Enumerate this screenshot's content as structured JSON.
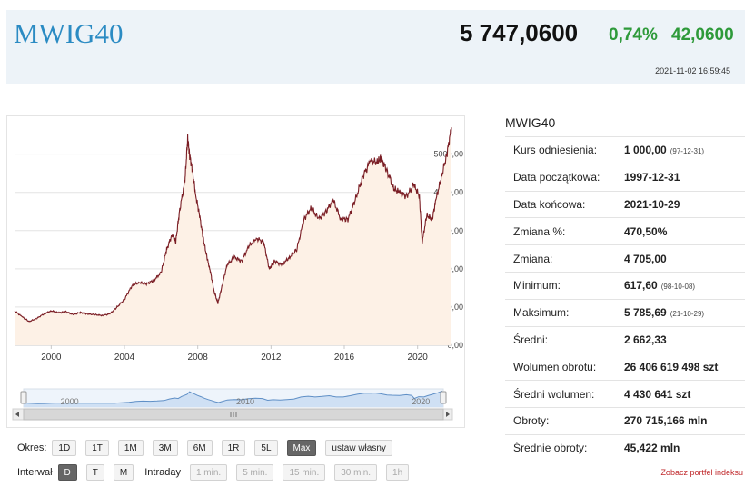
{
  "header": {
    "title": "MWIG40",
    "price": "5 747,0600",
    "change_pct": "0,74%",
    "change_abs": "42,0600",
    "timestamp": "2021-11-02 16:59:45",
    "accent_color": "#2b8bc3",
    "positive_color": "#2e9a3a"
  },
  "chart_data": {
    "type": "area",
    "x_ticks": [
      "2000",
      "2004",
      "2008",
      "2012",
      "2016",
      "2020"
    ],
    "y_ticks": [
      "0,00",
      "1000,00",
      "2000,00",
      "3000,00",
      "4000,00",
      "5000,00"
    ],
    "xlim": [
      1998.0,
      2021.9
    ],
    "ylim": [
      0,
      5800
    ],
    "grid": true,
    "line_color": "#7a1d24",
    "fill_color": "#fdf1e6",
    "navigator_ticks": [
      "2000",
      "2010",
      "2020"
    ],
    "points": [
      [
        1998.0,
        900
      ],
      [
        1998.4,
        750
      ],
      [
        1998.8,
        620
      ],
      [
        1999.2,
        700
      ],
      [
        1999.6,
        820
      ],
      [
        2000.0,
        900
      ],
      [
        2000.4,
        850
      ],
      [
        2000.8,
        880
      ],
      [
        2001.2,
        800
      ],
      [
        2001.6,
        860
      ],
      [
        2002.0,
        820
      ],
      [
        2002.4,
        800
      ],
      [
        2002.8,
        780
      ],
      [
        2003.2,
        820
      ],
      [
        2003.6,
        1000
      ],
      [
        2004.0,
        1200
      ],
      [
        2004.4,
        1550
      ],
      [
        2004.8,
        1650
      ],
      [
        2005.2,
        1600
      ],
      [
        2005.6,
        1700
      ],
      [
        2006.0,
        1900
      ],
      [
        2006.3,
        2500
      ],
      [
        2006.6,
        2900
      ],
      [
        2006.8,
        2700
      ],
      [
        2007.0,
        3500
      ],
      [
        2007.3,
        4300
      ],
      [
        2007.45,
        5400
      ],
      [
        2007.55,
        5000
      ],
      [
        2007.7,
        4600
      ],
      [
        2007.9,
        3900
      ],
      [
        2008.1,
        3400
      ],
      [
        2008.3,
        2800
      ],
      [
        2008.5,
        2300
      ],
      [
        2008.7,
        1900
      ],
      [
        2008.9,
        1400
      ],
      [
        2009.1,
        1100
      ],
      [
        2009.3,
        1500
      ],
      [
        2009.6,
        2100
      ],
      [
        2010.0,
        2300
      ],
      [
        2010.4,
        2200
      ],
      [
        2010.8,
        2600
      ],
      [
        2011.2,
        2800
      ],
      [
        2011.6,
        2700
      ],
      [
        2011.9,
        2000
      ],
      [
        2012.2,
        2200
      ],
      [
        2012.6,
        2100
      ],
      [
        2013.0,
        2300
      ],
      [
        2013.4,
        2500
      ],
      [
        2013.8,
        3300
      ],
      [
        2014.2,
        3600
      ],
      [
        2014.6,
        3300
      ],
      [
        2015.0,
        3500
      ],
      [
        2015.4,
        3800
      ],
      [
        2015.8,
        3300
      ],
      [
        2016.2,
        3300
      ],
      [
        2016.6,
        3800
      ],
      [
        2017.0,
        4400
      ],
      [
        2017.4,
        4800
      ],
      [
        2017.8,
        4800
      ],
      [
        2018.0,
        4900
      ],
      [
        2018.3,
        4600
      ],
      [
        2018.7,
        4100
      ],
      [
        2019.0,
        4000
      ],
      [
        2019.4,
        3900
      ],
      [
        2019.8,
        4200
      ],
      [
        2020.1,
        3900
      ],
      [
        2020.25,
        2700
      ],
      [
        2020.5,
        3400
      ],
      [
        2020.8,
        3300
      ],
      [
        2021.0,
        3800
      ],
      [
        2021.3,
        4400
      ],
      [
        2021.6,
        5000
      ],
      [
        2021.85,
        5700
      ]
    ]
  },
  "controls": {
    "period_label": "Okres:",
    "period_buttons": [
      "1D",
      "1T",
      "1M",
      "3M",
      "6M",
      "1R",
      "5L",
      "Max",
      "ustaw własny"
    ],
    "interval_label": "Interwał",
    "interval_buttons": [
      "D",
      "T",
      "M"
    ],
    "intraday_label": "Intraday",
    "intraday_buttons": [
      "1 min.",
      "5 min.",
      "15 min.",
      "30 min.",
      "1h"
    ]
  },
  "sidebar": {
    "title": "MWIG40",
    "rows": [
      {
        "label": "Kurs odniesienia:",
        "value": "1 000,00",
        "note": "(97-12-31)"
      },
      {
        "label": "Data początkowa:",
        "value": "1997-12-31",
        "note": ""
      },
      {
        "label": "Data końcowa:",
        "value": "2021-10-29",
        "note": ""
      },
      {
        "label": "Zmiana %:",
        "value": "470,50%",
        "note": ""
      },
      {
        "label": "Zmiana:",
        "value": "4 705,00",
        "note": ""
      },
      {
        "label": "Minimum:",
        "value": "617,60",
        "note": "(98-10-08)"
      },
      {
        "label": "Maksimum:",
        "value": "5 785,69",
        "note": "(21-10-29)"
      },
      {
        "label": "Średni:",
        "value": "2 662,33",
        "note": ""
      },
      {
        "label": "Wolumen obrotu:",
        "value": "26 406 619 498 szt",
        "note": ""
      },
      {
        "label": "Średni wolumen:",
        "value": "4 430 641 szt",
        "note": ""
      },
      {
        "label": "Obroty:",
        "value": "270 715,166 mln",
        "note": ""
      },
      {
        "label": "Średnie obroty:",
        "value": "45,422 mln",
        "note": ""
      }
    ],
    "portfolio_link": "Zobacz portfel indeksu"
  }
}
